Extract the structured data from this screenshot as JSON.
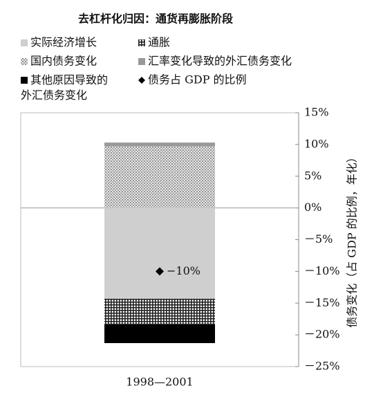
{
  "chart_data": {
    "type": "stacked-bar",
    "title": "去杠杆化归因：通货再膨胀阶段",
    "y_label": "债务变化（占 GDP 的比例，年化）",
    "categories": [
      "1998—2001"
    ],
    "series": [
      {
        "name": "实际经济增长",
        "color": "#cfcfcf",
        "pattern": "solid",
        "values": [
          -14.3
        ]
      },
      {
        "name": "通胀",
        "color": "#222222",
        "pattern": "grid",
        "values": [
          -4.1
        ]
      },
      {
        "name": "国内债务变化",
        "color": "#555555",
        "pattern": "dots",
        "values": [
          9.7
        ]
      },
      {
        "name": "汇率变化导致的外汇债务变化",
        "color": "#999999",
        "pattern": "solid",
        "values": [
          0.6
        ]
      },
      {
        "name": "其他原因导致的外汇债务变化",
        "color": "#000000",
        "pattern": "solid",
        "values": [
          -2.9
        ]
      }
    ],
    "markers": [
      {
        "name": "债务占 GDP 的比例",
        "color": "#000000",
        "values": [
          -10
        ],
        "value_labels": [
          "−10%"
        ]
      }
    ],
    "ylim": [
      -25,
      15
    ],
    "yticks": [
      {
        "value": 15,
        "label": "15%"
      },
      {
        "value": 10,
        "label": "10%"
      },
      {
        "value": 5,
        "label": "5%"
      },
      {
        "value": 0,
        "label": "0%"
      },
      {
        "value": -5,
        "label": "－5%"
      },
      {
        "value": -10,
        "label": "－10%"
      },
      {
        "value": -15,
        "label": "－15%"
      },
      {
        "value": -20,
        "label": "－20%"
      },
      {
        "value": -25,
        "label": "－25%"
      }
    ],
    "zero_line": true
  }
}
